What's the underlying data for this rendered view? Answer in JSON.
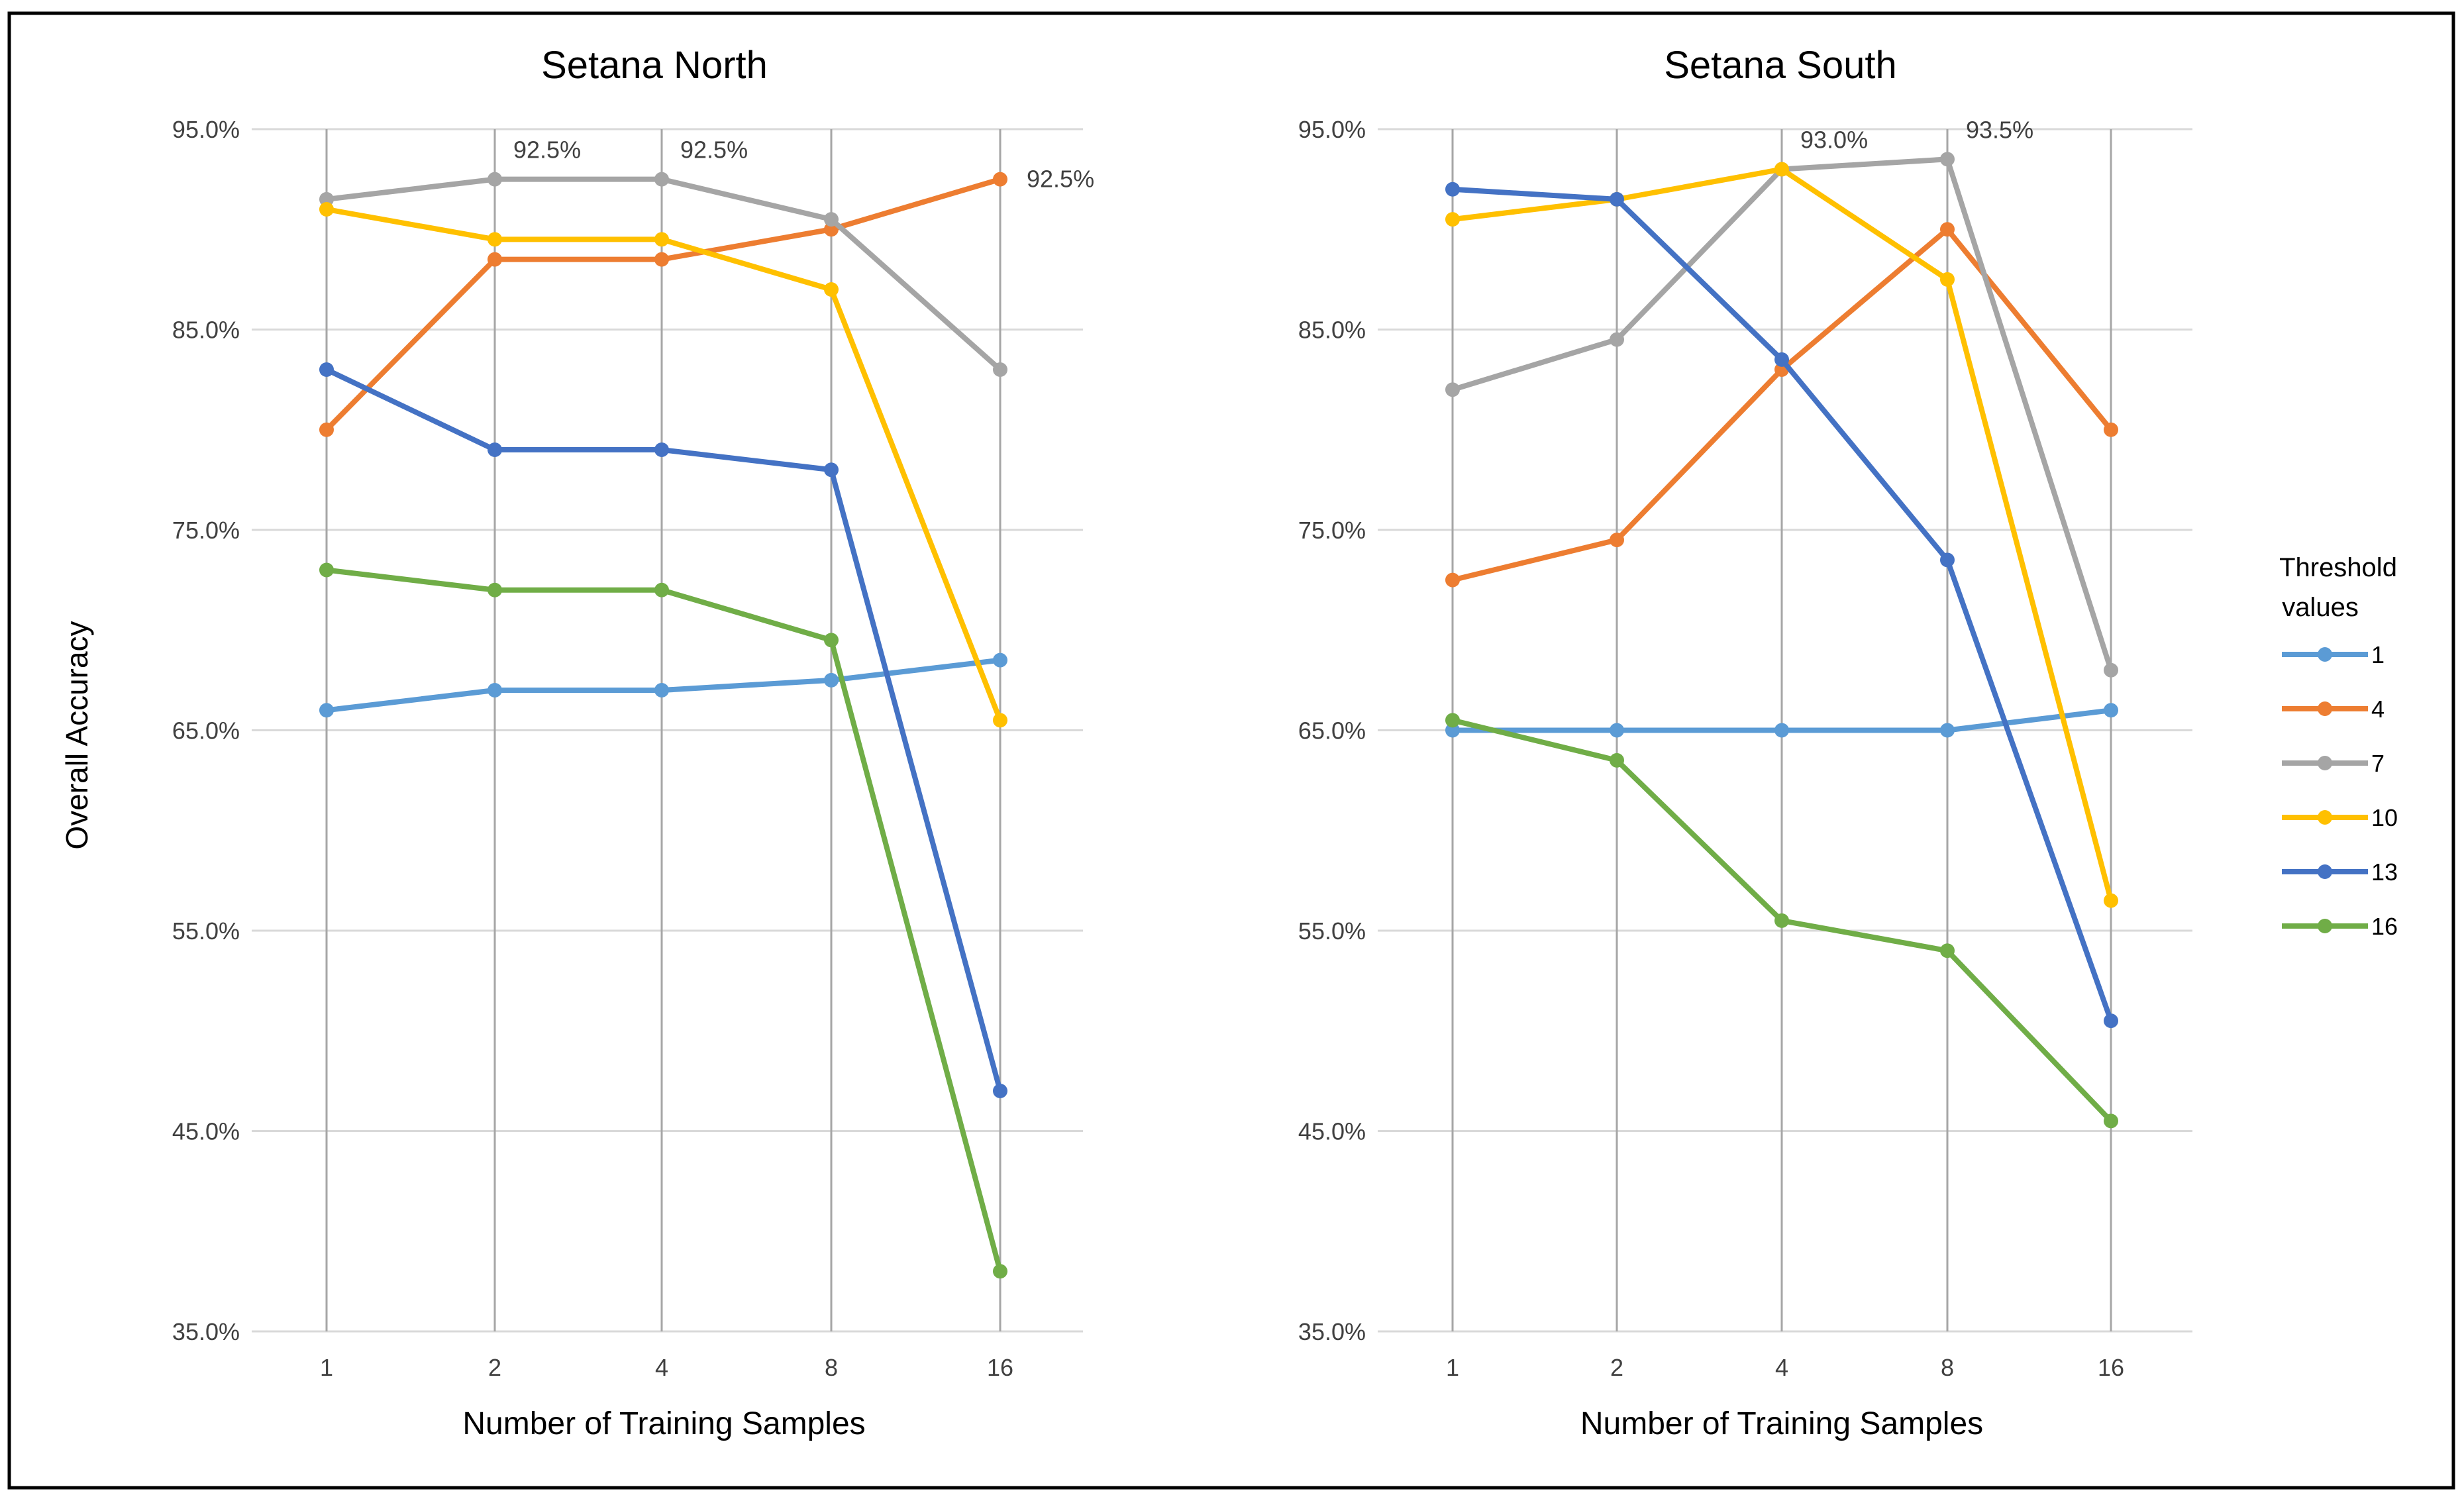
{
  "chart_data": [
    {
      "type": "line",
      "title": "Setana North",
      "xlabel": "Number  of Training Samples",
      "ylabel": "Overall Accuracy",
      "categories": [
        "1",
        "2",
        "4",
        "8",
        "16"
      ],
      "y_ticks": [
        "35.0%",
        "45.0%",
        "55.0%",
        "65.0%",
        "75.0%",
        "85.0%",
        "95.0%"
      ],
      "ylim": [
        35,
        95
      ],
      "grid": "both",
      "series": [
        {
          "name": "1",
          "values": [
            66.0,
            67.0,
            67.0,
            67.5,
            68.5
          ]
        },
        {
          "name": "4",
          "values": [
            80.0,
            88.5,
            88.5,
            90.0,
            92.5
          ]
        },
        {
          "name": "7",
          "values": [
            91.5,
            92.5,
            92.5,
            90.5,
            83.0
          ]
        },
        {
          "name": "10",
          "values": [
            91.0,
            89.5,
            89.5,
            87.0,
            65.5
          ]
        },
        {
          "name": "13",
          "values": [
            83.0,
            79.0,
            79.0,
            78.0,
            47.0
          ]
        },
        {
          "name": "16",
          "values": [
            73.0,
            72.0,
            72.0,
            69.5,
            38.0
          ]
        }
      ],
      "annotations": [
        {
          "text": "92.5%",
          "series": "7",
          "category": "2"
        },
        {
          "text": "92.5%",
          "series": "7",
          "category": "4"
        },
        {
          "text": "92.5%",
          "series": "4",
          "category": "16"
        }
      ]
    },
    {
      "type": "line",
      "title": "Setana South",
      "xlabel": "Number  of Training Samples",
      "ylabel": "",
      "categories": [
        "1",
        "2",
        "4",
        "8",
        "16"
      ],
      "y_ticks": [
        "35.0%",
        "45.0%",
        "55.0%",
        "65.0%",
        "75.0%",
        "85.0%",
        "95.0%"
      ],
      "ylim": [
        35,
        95
      ],
      "grid": "both",
      "series": [
        {
          "name": "1",
          "values": [
            65.0,
            65.0,
            65.0,
            65.0,
            66.0
          ]
        },
        {
          "name": "4",
          "values": [
            72.5,
            74.5,
            83.0,
            90.0,
            80.0
          ]
        },
        {
          "name": "7",
          "values": [
            82.0,
            84.5,
            93.0,
            93.5,
            68.0
          ]
        },
        {
          "name": "10",
          "values": [
            90.5,
            91.5,
            93.0,
            87.5,
            56.5
          ]
        },
        {
          "name": "13",
          "values": [
            92.0,
            91.5,
            83.5,
            73.5,
            50.5
          ]
        },
        {
          "name": "16",
          "values": [
            65.5,
            63.5,
            55.5,
            54.0,
            45.5
          ]
        }
      ],
      "annotations": [
        {
          "text": "93.0%",
          "series": "10",
          "category": "4"
        },
        {
          "text": "93.5%",
          "series": "7",
          "category": "8"
        }
      ]
    }
  ],
  "legend": {
    "title_line1": "Threshold",
    "title_line2": "values",
    "placement": "right",
    "entries": [
      {
        "label": "1",
        "color": "#5B9BD5"
      },
      {
        "label": "4",
        "color": "#ED7D31"
      },
      {
        "label": "7",
        "color": "#A5A5A5"
      },
      {
        "label": "10",
        "color": "#FFC000"
      },
      {
        "label": "13",
        "color": "#4472C4"
      },
      {
        "label": "16",
        "color": "#70AD47"
      }
    ]
  }
}
